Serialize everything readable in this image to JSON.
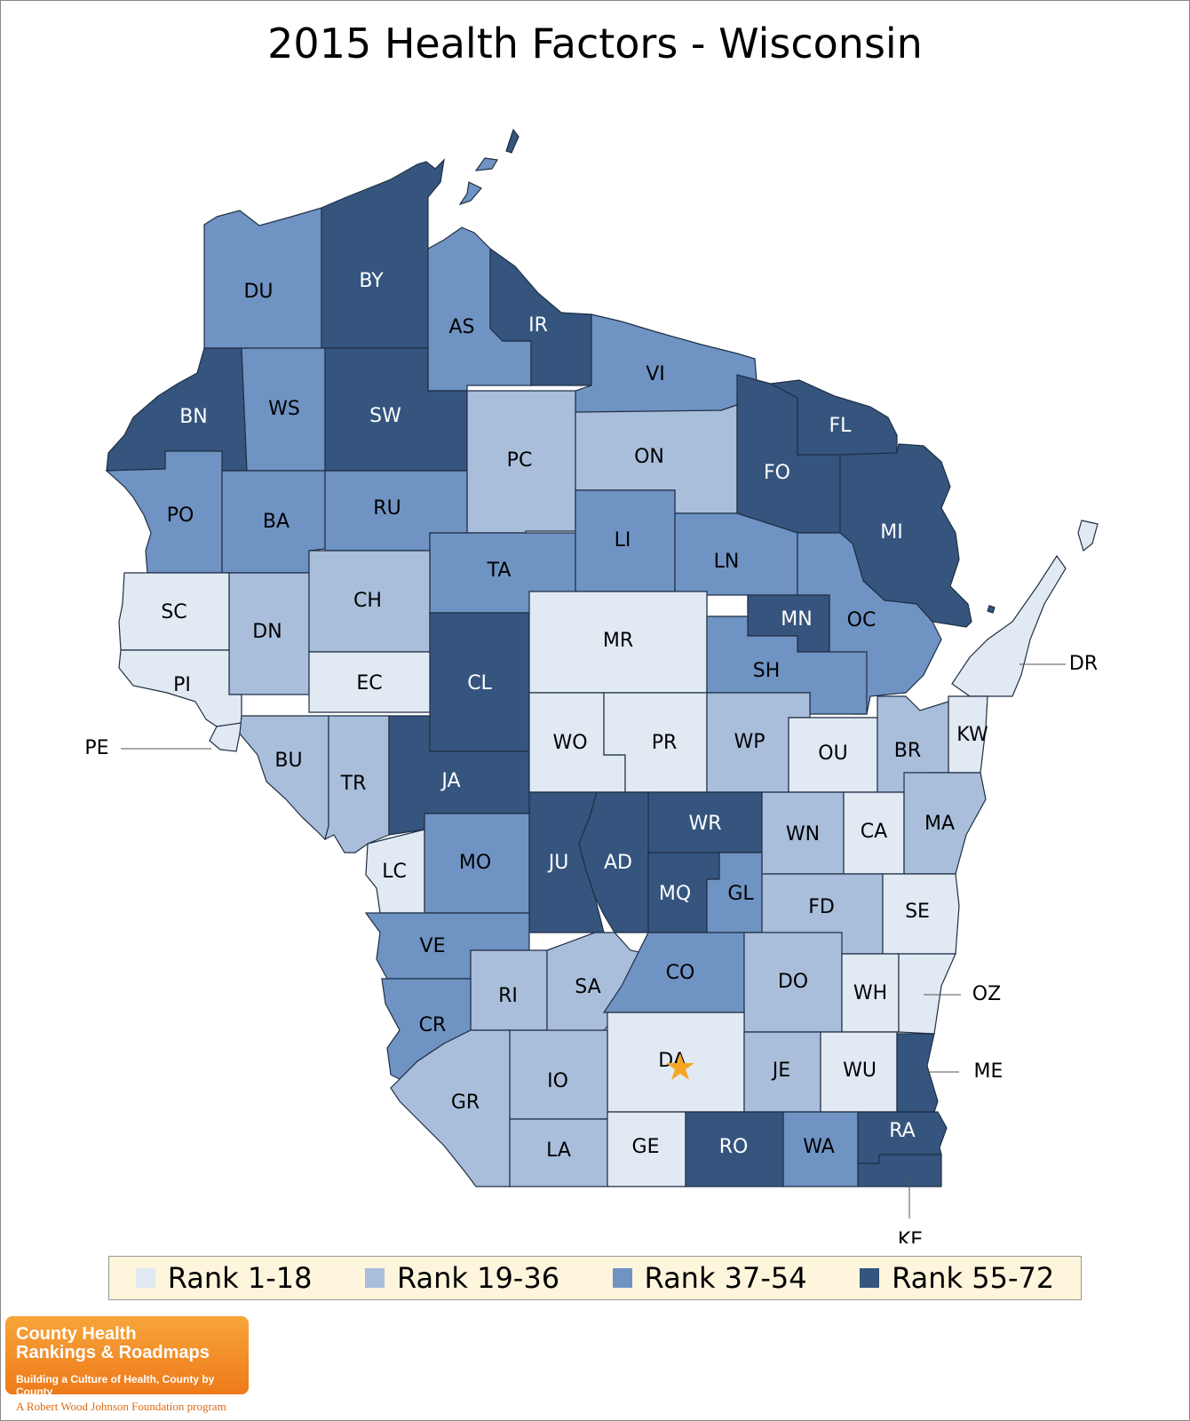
{
  "title": "2015 Health Factors - Wisconsin",
  "colors": {
    "rank_1_18": "#e1e9f3",
    "rank_19_36": "#a9bedb",
    "rank_37_54": "#6f93c3",
    "rank_55_72": "#35557e",
    "border": "#1f2f45",
    "legend_bg": "#fdf5dc",
    "star": "#f5a623"
  },
  "legend": [
    {
      "label": "Rank 1-18",
      "group": 1
    },
    {
      "label": "Rank 19-36",
      "group": 2
    },
    {
      "label": "Rank 37-54",
      "group": 3
    },
    {
      "label": "Rank 55-72",
      "group": 4
    }
  ],
  "counties": [
    {
      "code": "DU",
      "group": 3
    },
    {
      "code": "BY",
      "group": 4
    },
    {
      "code": "AS",
      "group": 3
    },
    {
      "code": "IR",
      "group": 4
    },
    {
      "code": "VI",
      "group": 3
    },
    {
      "code": "BN",
      "group": 4
    },
    {
      "code": "WS",
      "group": 3
    },
    {
      "code": "SW",
      "group": 4
    },
    {
      "code": "PC",
      "group": 2
    },
    {
      "code": "ON",
      "group": 2
    },
    {
      "code": "FO",
      "group": 4
    },
    {
      "code": "FL",
      "group": 4
    },
    {
      "code": "MI",
      "group": 4
    },
    {
      "code": "PO",
      "group": 3
    },
    {
      "code": "BA",
      "group": 3
    },
    {
      "code": "RU",
      "group": 3
    },
    {
      "code": "TA",
      "group": 3
    },
    {
      "code": "LI",
      "group": 3
    },
    {
      "code": "LN",
      "group": 3
    },
    {
      "code": "OC",
      "group": 3
    },
    {
      "code": "MN",
      "group": 4
    },
    {
      "code": "SC",
      "group": 1
    },
    {
      "code": "DN",
      "group": 2
    },
    {
      "code": "CH",
      "group": 2
    },
    {
      "code": "CL",
      "group": 4
    },
    {
      "code": "MR",
      "group": 1
    },
    {
      "code": "SH",
      "group": 3
    },
    {
      "code": "PI",
      "group": 1
    },
    {
      "code": "EC",
      "group": 1
    },
    {
      "code": "DR",
      "group": 1
    },
    {
      "code": "KW",
      "group": 1
    },
    {
      "code": "PE",
      "group": 1
    },
    {
      "code": "BU",
      "group": 2
    },
    {
      "code": "TR",
      "group": 2
    },
    {
      "code": "JA",
      "group": 4
    },
    {
      "code": "WO",
      "group": 1
    },
    {
      "code": "PR",
      "group": 1
    },
    {
      "code": "WP",
      "group": 2
    },
    {
      "code": "OU",
      "group": 1
    },
    {
      "code": "BR",
      "group": 2
    },
    {
      "code": "WR",
      "group": 4
    },
    {
      "code": "WN",
      "group": 2
    },
    {
      "code": "CA",
      "group": 1
    },
    {
      "code": "MA",
      "group": 2
    },
    {
      "code": "LC",
      "group": 1
    },
    {
      "code": "MO",
      "group": 3
    },
    {
      "code": "JU",
      "group": 4
    },
    {
      "code": "AD",
      "group": 4
    },
    {
      "code": "MQ",
      "group": 4
    },
    {
      "code": "GL",
      "group": 3
    },
    {
      "code": "FD",
      "group": 2
    },
    {
      "code": "SE",
      "group": 1
    },
    {
      "code": "VE",
      "group": 3
    },
    {
      "code": "RI",
      "group": 2
    },
    {
      "code": "SA",
      "group": 2
    },
    {
      "code": "CO",
      "group": 3
    },
    {
      "code": "DO",
      "group": 2
    },
    {
      "code": "WH",
      "group": 1
    },
    {
      "code": "OZ",
      "group": 1
    },
    {
      "code": "CR",
      "group": 3
    },
    {
      "code": "DA",
      "group": 1
    },
    {
      "code": "JE",
      "group": 2
    },
    {
      "code": "WU",
      "group": 1
    },
    {
      "code": "ME",
      "group": 4
    },
    {
      "code": "IO",
      "group": 2
    },
    {
      "code": "GR",
      "group": 2
    },
    {
      "code": "LA",
      "group": 2
    },
    {
      "code": "GE",
      "group": 1
    },
    {
      "code": "RO",
      "group": 4
    },
    {
      "code": "WA",
      "group": 3
    },
    {
      "code": "RA",
      "group": 4
    },
    {
      "code": "KE",
      "group": 4
    }
  ],
  "capital_marker": "star",
  "logo": {
    "line1": "County Health",
    "line2": "Rankings & Roadmaps",
    "tagline": "Building a Culture of Health, County by County",
    "foundation": "A Robert Wood Johnson Foundation program"
  }
}
